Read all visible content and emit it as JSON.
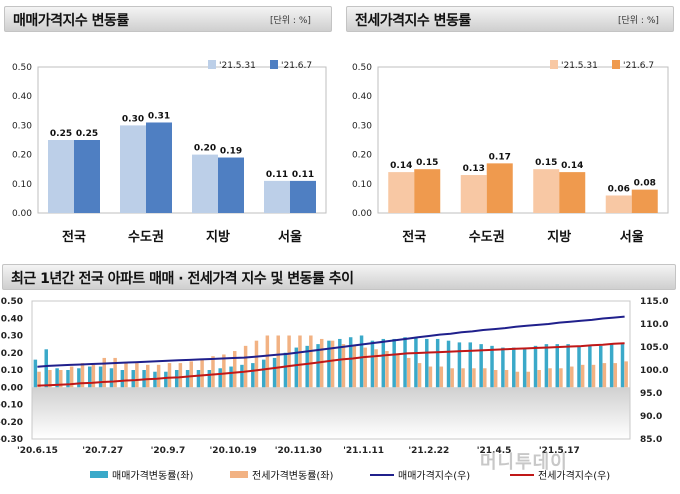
{
  "panels": {
    "sale": {
      "title": "매매가격지수 변동률",
      "unit": "[단위 : %]"
    },
    "jeonse": {
      "title": "전세가격지수 변동률",
      "unit": "[단위 : %]"
    },
    "trend": {
      "title": "최근 1년간 전국 아파트 매매 · 전세가격 지수 및 변동률 추이"
    }
  },
  "watermark": "머니투데이",
  "chart_data": [
    {
      "type": "bar",
      "title": "매매가격지수 변동률",
      "categories": [
        "전국",
        "수도권",
        "지방",
        "서울"
      ],
      "series": [
        {
          "name": "'21.5.31",
          "values": [
            0.25,
            0.3,
            0.2,
            0.11
          ],
          "color": "#bccfe8"
        },
        {
          "name": "'21.6.7",
          "values": [
            0.25,
            0.31,
            0.19,
            0.11
          ],
          "color": "#4f7fc2"
        }
      ],
      "ylim": [
        0,
        0.5
      ],
      "yticks": [
        "0.00",
        "0.10",
        "0.20",
        "0.30",
        "0.40",
        "0.50"
      ],
      "value_labels": [
        [
          "0.25",
          "0.30",
          "0.20",
          "0.11"
        ],
        [
          "0.25",
          "0.31",
          "0.19",
          "0.11"
        ]
      ],
      "legend": "top-right"
    },
    {
      "type": "bar",
      "title": "전세가격지수 변동률",
      "categories": [
        "전국",
        "수도권",
        "지방",
        "서울"
      ],
      "series": [
        {
          "name": "'21.5.31",
          "values": [
            0.14,
            0.13,
            0.15,
            0.06
          ],
          "color": "#f8c8a4"
        },
        {
          "name": "'21.6.7",
          "values": [
            0.15,
            0.17,
            0.14,
            0.08
          ],
          "color": "#ef9a4e"
        }
      ],
      "ylim": [
        0,
        0.5
      ],
      "yticks": [
        "0.00",
        "0.10",
        "0.20",
        "0.30",
        "0.40",
        "0.50"
      ],
      "value_labels": [
        [
          "0.14",
          "0.13",
          "0.15",
          "0.06"
        ],
        [
          "0.15",
          "0.17",
          "0.14",
          "0.08"
        ]
      ],
      "legend": "top-right"
    },
    {
      "type": "bar",
      "title": "최근 1년간 전국 아파트 매매 · 전세가격 지수 및 변동률 추이",
      "x_tick_labels": [
        "'20.6.15",
        "'20.7.27",
        "'20.9.7",
        "'20.10.19",
        "'20.11.30",
        "'21.1.11",
        "'21.2.22",
        "'21.4.5",
        "'21.5.17"
      ],
      "y_left_ticks": [
        "0.50",
        "0.40",
        "0.30",
        "0.20",
        "0.10",
        "0.00",
        "-0.10",
        "-0.20",
        "-0.30"
      ],
      "y_left_lim": [
        -0.3,
        0.5
      ],
      "y_right_ticks": [
        "115.0",
        "110.0",
        "105.0",
        "100.0",
        "95.0",
        "90.0",
        "85.0"
      ],
      "y_right_lim": [
        85.0,
        115.0
      ],
      "series": [
        {
          "name": "매매가격변동률(좌)",
          "axis": "left",
          "kind": "bar",
          "color": "#3aa9c9",
          "values": [
            0.16,
            0.22,
            0.11,
            0.1,
            0.11,
            0.12,
            0.12,
            0.11,
            0.1,
            0.1,
            0.1,
            0.09,
            0.09,
            0.1,
            0.1,
            0.1,
            0.1,
            0.11,
            0.12,
            0.13,
            0.14,
            0.16,
            0.17,
            0.2,
            0.23,
            0.24,
            0.25,
            0.27,
            0.28,
            0.29,
            0.3,
            0.27,
            0.28,
            0.28,
            0.29,
            0.29,
            0.28,
            0.28,
            0.27,
            0.26,
            0.26,
            0.25,
            0.24,
            0.23,
            0.23,
            0.23,
            0.24,
            0.25,
            0.25,
            0.25,
            0.24,
            0.24,
            0.24,
            0.25,
            0.25
          ]
        },
        {
          "name": "전세가격변동률(좌)",
          "axis": "left",
          "kind": "bar",
          "color": "#f2b283",
          "values": [
            0.09,
            0.1,
            0.1,
            0.12,
            0.14,
            0.13,
            0.17,
            0.17,
            0.14,
            0.14,
            0.13,
            0.13,
            0.14,
            0.14,
            0.15,
            0.16,
            0.18,
            0.19,
            0.21,
            0.24,
            0.27,
            0.3,
            0.3,
            0.3,
            0.3,
            0.3,
            0.28,
            0.27,
            0.25,
            0.24,
            0.23,
            0.22,
            0.21,
            0.19,
            0.17,
            0.14,
            0.12,
            0.12,
            0.11,
            0.11,
            0.11,
            0.11,
            0.1,
            0.1,
            0.09,
            0.09,
            0.1,
            0.11,
            0.11,
            0.12,
            0.13,
            0.13,
            0.14,
            0.14,
            0.15
          ]
        },
        {
          "name": "매매가격지수(우)",
          "axis": "right",
          "kind": "line",
          "color": "#20208c",
          "values": [
            100.7,
            100.9,
            101.0,
            101.1,
            101.2,
            101.3,
            101.4,
            101.5,
            101.6,
            101.7,
            101.8,
            101.9,
            102.0,
            102.1,
            102.2,
            102.3,
            102.4,
            102.5,
            102.6,
            102.7,
            102.9,
            103.1,
            103.3,
            103.5,
            103.8,
            104.1,
            104.4,
            104.7,
            105.0,
            105.3,
            105.6,
            105.9,
            106.2,
            106.5,
            106.8,
            107.1,
            107.4,
            107.7,
            107.9,
            108.2,
            108.4,
            108.7,
            108.9,
            109.1,
            109.4,
            109.6,
            109.8,
            110.0,
            110.3,
            110.5,
            110.7,
            110.9,
            111.2,
            111.4,
            111.6
          ]
        },
        {
          "name": "전세가격지수(우)",
          "axis": "right",
          "kind": "line",
          "color": "#c01818",
          "values": [
            96.6,
            96.7,
            96.8,
            96.9,
            97.1,
            97.2,
            97.4,
            97.5,
            97.7,
            97.8,
            98.0,
            98.1,
            98.3,
            98.4,
            98.6,
            98.8,
            99.0,
            99.2,
            99.4,
            99.6,
            99.9,
            100.2,
            100.5,
            100.8,
            101.1,
            101.4,
            101.7,
            102.0,
            102.3,
            102.5,
            102.8,
            103.0,
            103.2,
            103.4,
            103.6,
            103.7,
            103.8,
            103.9,
            104.0,
            104.1,
            104.2,
            104.3,
            104.4,
            104.5,
            104.6,
            104.7,
            104.8,
            104.9,
            105.0,
            105.1,
            105.2,
            105.4,
            105.5,
            105.7,
            105.8
          ]
        }
      ],
      "legend": "bottom"
    }
  ]
}
